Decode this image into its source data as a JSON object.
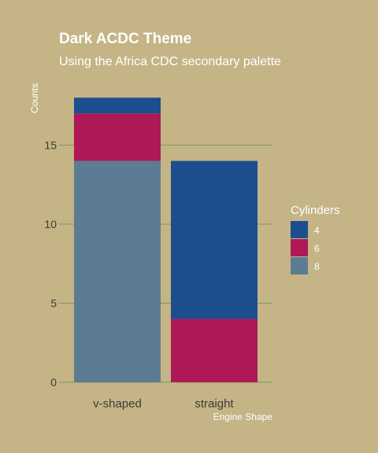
{
  "chart_data": {
    "type": "bar",
    "stacked": true,
    "title": "Dark ACDC Theme",
    "subtitle": "Using the Africa CDC secondary palette",
    "xlabel": "Engine Shape",
    "ylabel": "Counts",
    "categories": [
      "v-shaped",
      "straight"
    ],
    "ylim": [
      0,
      18
    ],
    "yticks": [
      0,
      5,
      10,
      15
    ],
    "grid": true,
    "legend": {
      "title": "Cylinders",
      "position": "right"
    },
    "series": [
      {
        "name": "8",
        "color": "#5c7c93",
        "values": [
          14,
          0
        ]
      },
      {
        "name": "6",
        "color": "#ae1857",
        "values": [
          3,
          4
        ]
      },
      {
        "name": "4",
        "color": "#1c4e8e",
        "values": [
          1,
          10
        ]
      }
    ],
    "legend_order": [
      "4",
      "6",
      "8"
    ]
  }
}
